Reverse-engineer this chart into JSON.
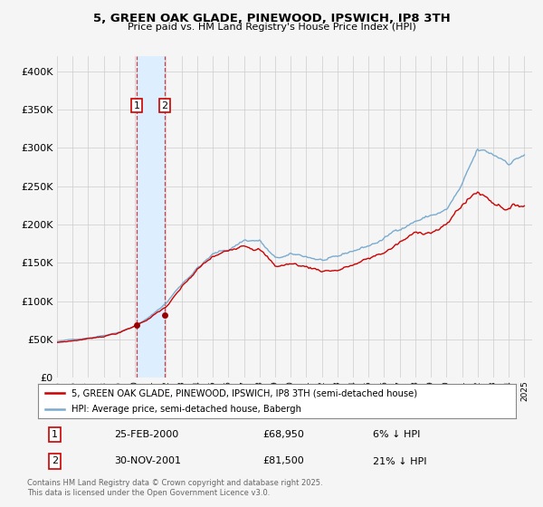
{
  "title": "5, GREEN OAK GLADE, PINEWOOD, IPSWICH, IP8 3TH",
  "subtitle": "Price paid vs. HM Land Registry's House Price Index (HPI)",
  "legend_line1": "5, GREEN OAK GLADE, PINEWOOD, IPSWICH, IP8 3TH (semi-detached house)",
  "legend_line2": "HPI: Average price, semi-detached house, Babergh",
  "transaction1_label": "1",
  "transaction1_date": "25-FEB-2000",
  "transaction1_price": "£68,950",
  "transaction1_hpi": "6% ↓ HPI",
  "transaction1_year": 2000.12,
  "transaction1_value": 68950,
  "transaction2_label": "2",
  "transaction2_date": "30-NOV-2001",
  "transaction2_price": "£81,500",
  "transaction2_hpi": "21% ↓ HPI",
  "transaction2_year": 2001.91,
  "transaction2_value": 81500,
  "footnote1": "Contains HM Land Registry data © Crown copyright and database right 2025.",
  "footnote2": "This data is licensed under the Open Government Licence v3.0.",
  "red_line_color": "#cc0000",
  "blue_line_color": "#7aabcf",
  "marker_color": "#990000",
  "shading_color": "#ddeeff",
  "grid_color": "#cccccc",
  "background_color": "#f5f5f5",
  "ylim": [
    0,
    420000
  ],
  "xlim_start": 1995.0,
  "xlim_end": 2025.5,
  "yticks": [
    0,
    50000,
    100000,
    150000,
    200000,
    250000,
    300000,
    350000,
    400000
  ]
}
